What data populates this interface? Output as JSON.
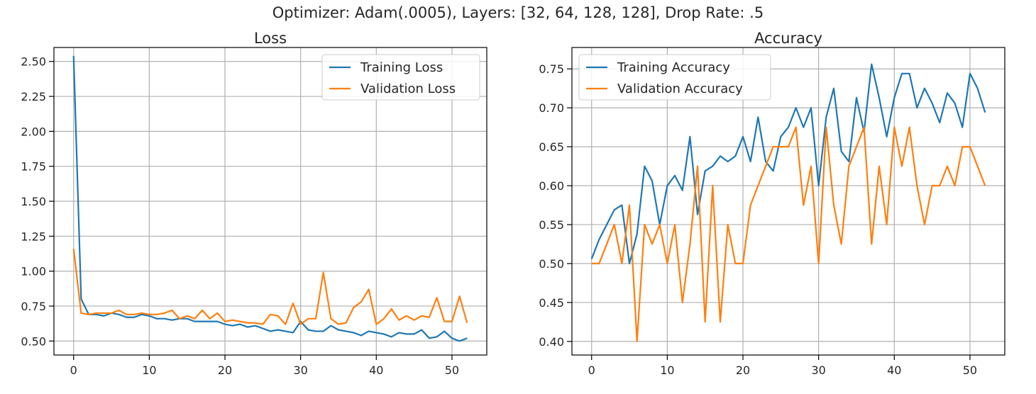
{
  "figure": {
    "suptitle": "Optimizer: Adam(.0005), Layers: [32, 64, 128, 128], Drop Rate: .5"
  },
  "colors": {
    "training": "#1f77b4",
    "validation": "#ff7f0e",
    "grid": "#b0b0b0"
  },
  "chart_data": [
    {
      "type": "line",
      "title": "Loss",
      "xlabel": "",
      "ylabel": "",
      "xlim": [
        -2.6,
        54.6
      ],
      "ylim": [
        0.4,
        2.6
      ],
      "xticks": [
        0,
        10,
        20,
        30,
        40,
        50
      ],
      "yticks": [
        0.5,
        0.75,
        1.0,
        1.25,
        1.5,
        1.75,
        2.0,
        2.25,
        2.5
      ],
      "ytick_labels": [
        "0.50",
        "0.75",
        "1.00",
        "1.25",
        "1.50",
        "1.75",
        "2.00",
        "2.25",
        "2.50"
      ],
      "grid": true,
      "legend_position": "upper right",
      "series": [
        {
          "name": "Training Loss",
          "color": "#1f77b4",
          "values": [
            2.54,
            0.8,
            0.69,
            0.69,
            0.68,
            0.7,
            0.69,
            0.67,
            0.67,
            0.69,
            0.68,
            0.66,
            0.66,
            0.65,
            0.66,
            0.66,
            0.64,
            0.64,
            0.64,
            0.64,
            0.62,
            0.61,
            0.62,
            0.6,
            0.61,
            0.59,
            0.57,
            0.58,
            0.57,
            0.56,
            0.64,
            0.58,
            0.57,
            0.57,
            0.61,
            0.58,
            0.57,
            0.56,
            0.54,
            0.57,
            0.56,
            0.55,
            0.53,
            0.56,
            0.55,
            0.55,
            0.58,
            0.52,
            0.53,
            0.57,
            0.52,
            0.5,
            0.52
          ]
        },
        {
          "name": "Validation Loss",
          "color": "#ff7f0e",
          "values": [
            1.16,
            0.7,
            0.69,
            0.7,
            0.7,
            0.7,
            0.72,
            0.69,
            0.69,
            0.7,
            0.69,
            0.69,
            0.7,
            0.72,
            0.66,
            0.68,
            0.66,
            0.72,
            0.66,
            0.7,
            0.64,
            0.65,
            0.64,
            0.63,
            0.63,
            0.62,
            0.69,
            0.68,
            0.62,
            0.77,
            0.62,
            0.66,
            0.66,
            0.99,
            0.66,
            0.62,
            0.63,
            0.74,
            0.78,
            0.87,
            0.62,
            0.66,
            0.73,
            0.65,
            0.68,
            0.65,
            0.68,
            0.67,
            0.81,
            0.64,
            0.64,
            0.82,
            0.63
          ]
        }
      ]
    },
    {
      "type": "line",
      "title": "Accuracy",
      "xlabel": "",
      "ylabel": "",
      "xlim": [
        -2.6,
        54.6
      ],
      "ylim": [
        0.3825,
        0.7775
      ],
      "xticks": [
        0,
        10,
        20,
        30,
        40,
        50
      ],
      "yticks": [
        0.4,
        0.45,
        0.5,
        0.55,
        0.6,
        0.65,
        0.7,
        0.75
      ],
      "ytick_labels": [
        "0.40",
        "0.45",
        "0.50",
        "0.55",
        "0.60",
        "0.65",
        "0.70",
        "0.75"
      ],
      "grid": true,
      "legend_position": "upper left",
      "series": [
        {
          "name": "Training Accuracy",
          "color": "#1f77b4",
          "values": [
            0.506,
            0.531,
            0.55,
            0.569,
            0.575,
            0.5,
            0.538,
            0.625,
            0.606,
            0.55,
            0.6,
            0.613,
            0.594,
            0.663,
            0.563,
            0.619,
            0.625,
            0.638,
            0.631,
            0.638,
            0.663,
            0.631,
            0.688,
            0.631,
            0.619,
            0.663,
            0.675,
            0.7,
            0.675,
            0.7,
            0.6,
            0.688,
            0.725,
            0.644,
            0.631,
            0.713,
            0.669,
            0.756,
            0.713,
            0.663,
            0.713,
            0.744,
            0.744,
            0.7,
            0.725,
            0.706,
            0.681,
            0.719,
            0.706,
            0.675,
            0.744,
            0.725,
            0.694
          ]
        },
        {
          "name": "Validation Accuracy",
          "color": "#ff7f0e",
          "values": [
            0.5,
            0.5,
            0.525,
            0.55,
            0.5,
            0.575,
            0.4,
            0.55,
            0.525,
            0.55,
            0.5,
            0.55,
            0.45,
            0.525,
            0.625,
            0.425,
            0.6,
            0.425,
            0.55,
            0.5,
            0.5,
            0.575,
            0.6,
            0.625,
            0.65,
            0.65,
            0.65,
            0.675,
            0.575,
            0.625,
            0.5,
            0.675,
            0.575,
            0.525,
            0.625,
            0.65,
            0.675,
            0.525,
            0.625,
            0.55,
            0.675,
            0.625,
            0.675,
            0.6,
            0.55,
            0.6,
            0.6,
            0.625,
            0.6,
            0.65,
            0.65,
            0.625,
            0.6
          ]
        }
      ]
    }
  ]
}
